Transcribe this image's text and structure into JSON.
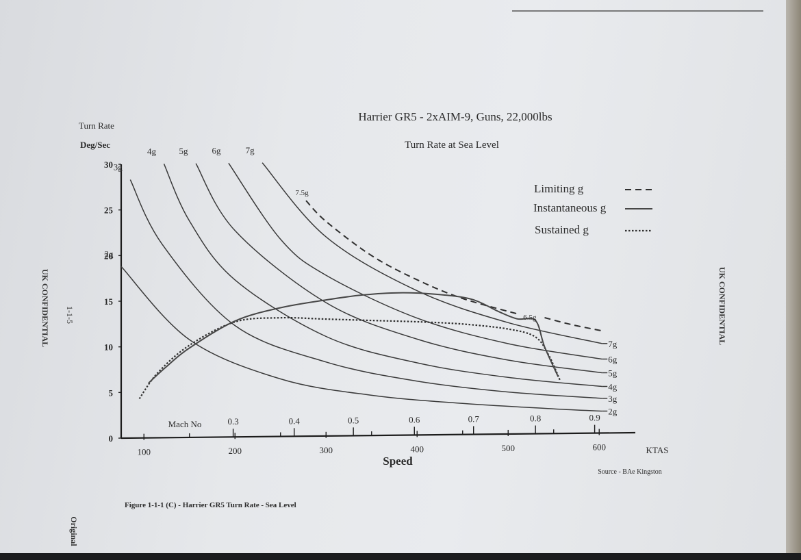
{
  "chart_data": {
    "type": "line",
    "title": "Harrier GR5 - 2xAIM-9, Guns, 22,000lbs",
    "subtitle": "Turn Rate at Sea Level",
    "ylabel_line1": "Turn Rate",
    "ylabel_line2": "Deg/Sec",
    "xlabel": "Speed",
    "x_unit": "KTAS",
    "mach_label": "Mach No",
    "ylim": [
      0,
      30
    ],
    "xlim": [
      75,
      615
    ],
    "y_ticks": [
      "0",
      "5",
      "10",
      "15",
      "20",
      "25",
      "30"
    ],
    "x_ticks": [
      "100",
      "200",
      "300",
      "400",
      "500",
      "600"
    ],
    "mach_ticks": [
      {
        "label": "0.3",
        "ktas": 198
      },
      {
        "label": "0.4",
        "ktas": 265
      },
      {
        "label": "0.5",
        "ktas": 330
      },
      {
        "label": "0.6",
        "ktas": 397
      },
      {
        "label": "0.7",
        "ktas": 462
      },
      {
        "label": "0.8",
        "ktas": 530
      },
      {
        "label": "0.9",
        "ktas": 595
      }
    ],
    "legend": {
      "limiting": "Limiting g",
      "instantaneous": "Instantaneous g",
      "sustained": "Sustained g"
    },
    "g_lines": [
      {
        "name": "2g",
        "x": [
          75,
          150,
          250,
          350,
          450,
          550,
          603
        ],
        "y": [
          18.8,
          10.7,
          6.3,
          4.4,
          3.4,
          2.7,
          2.4
        ]
      },
      {
        "name": "3g",
        "x": [
          85,
          120,
          200,
          300,
          400,
          500,
          603
        ],
        "y": [
          28.3,
          21.2,
          12.2,
          8.1,
          5.9,
          4.6,
          3.8
        ]
      },
      {
        "name": "4g",
        "x": [
          122,
          150,
          200,
          300,
          400,
          500,
          603
        ],
        "y": [
          30,
          23.7,
          17.2,
          10.9,
          7.9,
          6.2,
          5.1
        ]
      },
      {
        "name": "5g",
        "x": [
          157,
          200,
          300,
          400,
          500,
          603
        ],
        "y": [
          30,
          22.6,
          14.6,
          10.5,
          8.1,
          6.6
        ]
      },
      {
        "name": "6g",
        "x": [
          193,
          250,
          300,
          400,
          500,
          603
        ],
        "y": [
          30,
          21.6,
          17.6,
          12.8,
          9.9,
          8.1
        ]
      },
      {
        "name": "7g",
        "x": [
          230,
          300,
          400,
          500,
          603
        ],
        "y": [
          30,
          21.8,
          15.8,
          12.2,
          9.8
        ]
      }
    ],
    "limiting_g": [
      {
        "name": "7.5g",
        "x": [
          278,
          300,
          350,
          400,
          450,
          512
        ],
        "y": [
          25.8,
          23.5,
          19.7,
          17.0,
          14.9,
          13.1
        ]
      },
      {
        "name": "6.5g",
        "x": [
          540,
          570,
          603
        ],
        "y": [
          12.7,
          11.9,
          11.2
        ]
      }
    ],
    "instantaneous_g": {
      "x": [
        105,
        125,
        150,
        200,
        250,
        300,
        340,
        380,
        420,
        460,
        490,
        510,
        530,
        540,
        555
      ],
      "y": [
        6.0,
        7.8,
        9.8,
        12.7,
        14.1,
        14.9,
        15.4,
        15.6,
        15.4,
        14.8,
        13.4,
        12.6,
        12.4,
        9.5,
        6.2
      ]
    },
    "sustained_g": {
      "x": [
        95,
        115,
        150,
        200,
        250,
        300,
        350,
        400,
        450,
        500,
        530,
        545,
        557
      ],
      "y": [
        4.3,
        7.1,
        10.1,
        12.6,
        13.0,
        12.8,
        12.6,
        12.4,
        12.1,
        11.5,
        10.6,
        8.5,
        5.8
      ]
    }
  },
  "labels": {
    "figure_caption": "Figure 1-1-1 (C) - Harrier GR5 Turn Rate - Sea Level",
    "source": "Source - BAe Kingston",
    "confidential_left": "UK CONFIDENTIAL",
    "confidential_right": "UK CONFIDENTIAL",
    "page_ref": "1-1-5",
    "original": "Original"
  }
}
